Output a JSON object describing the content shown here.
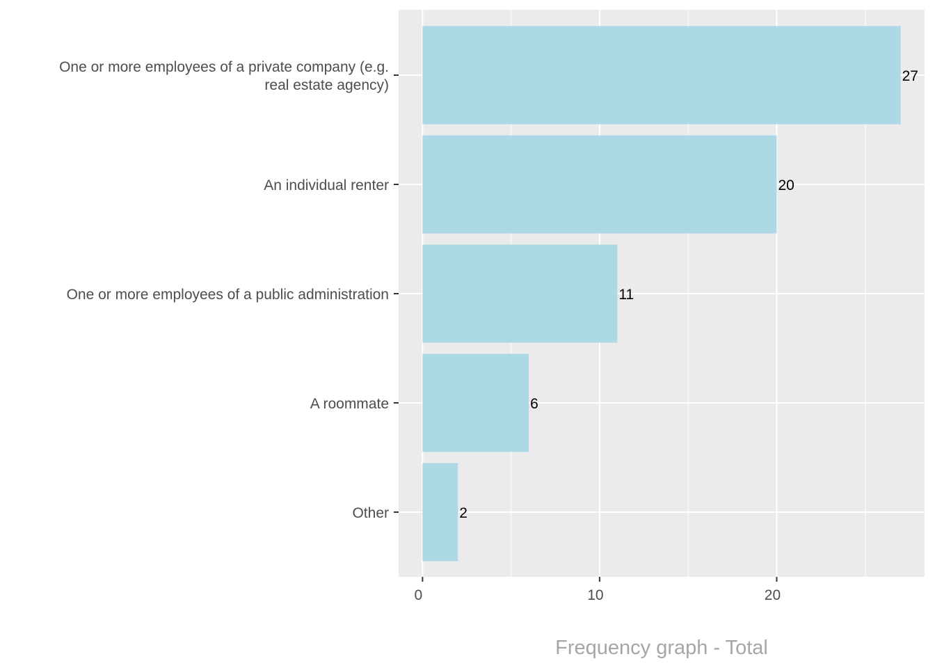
{
  "chart_data": {
    "type": "bar",
    "orientation": "horizontal",
    "title": "",
    "xlabel": "Frequency graph - Total",
    "ylabel": "",
    "categories": [
      [
        "One or more employees of a private company (e.g.",
        "real estate agency)"
      ],
      [
        "An individual renter"
      ],
      [
        "One or more employees of a public administration"
      ],
      [
        "A roommate"
      ],
      [
        "Other"
      ]
    ],
    "values": [
      27,
      20,
      11,
      6,
      2
    ],
    "data_labels": [
      "27",
      "20",
      "11",
      "6",
      "2"
    ],
    "xlim": [
      -1.35,
      28.35
    ],
    "xticks": [
      0,
      10,
      20
    ],
    "xtick_labels": [
      "0",
      "10",
      "20"
    ],
    "minor_xticks": [
      5,
      15,
      25
    ],
    "grid": true,
    "colors": {
      "bar": "#add8e6",
      "panel": "#ebebeb",
      "grid": "#ffffff",
      "title": "#a6a6a6"
    }
  }
}
